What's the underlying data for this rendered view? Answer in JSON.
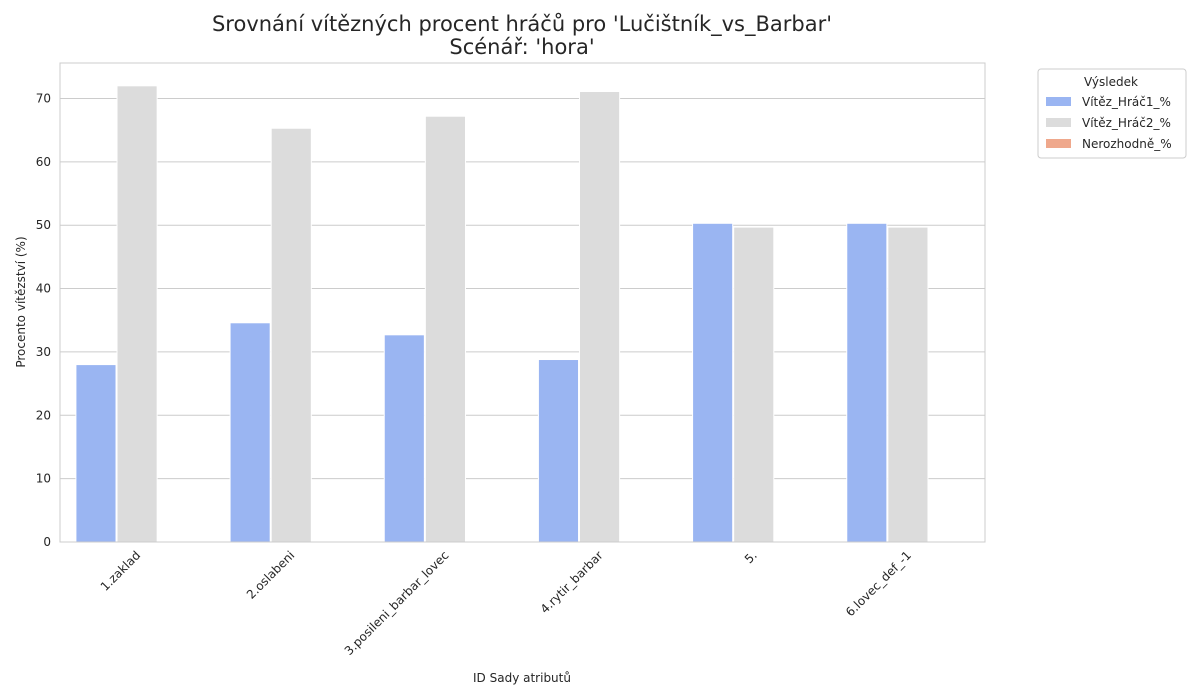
{
  "chart_data": {
    "type": "bar",
    "title": "Srovnání vítězných procent hráčů pro 'Lučištník_vs_Barbar'",
    "subtitle": "Scénář: 'hora'",
    "xlabel": "ID Sady atributů",
    "ylabel": "Procento vítězství (%)",
    "ylim": [
      0,
      75.6
    ],
    "yticks": [
      0,
      10,
      20,
      30,
      40,
      50,
      60,
      70
    ],
    "grid": true,
    "legend_title": "Výsledek",
    "legend_position": "outside-top-right",
    "categories": [
      "1.zaklad",
      "2.oslabeni",
      "3.posileni_barbar_lovec",
      "4.rytir_barbar",
      "5.",
      "6.lovec_def_-1"
    ],
    "series": [
      {
        "name": "Vítěz_Hráč1_%",
        "color": "#9ab5f2",
        "values": [
          28.0,
          34.6,
          32.7,
          28.8,
          50.3,
          50.3
        ]
      },
      {
        "name": "Vítěz_Hráč2_%",
        "color": "#dcdcdc",
        "values": [
          72.0,
          65.3,
          67.2,
          71.1,
          49.7,
          49.7
        ]
      },
      {
        "name": "Nerozhodně_%",
        "color": "#efa88c",
        "values": [
          0,
          0,
          0,
          0,
          0,
          0
        ]
      }
    ]
  }
}
